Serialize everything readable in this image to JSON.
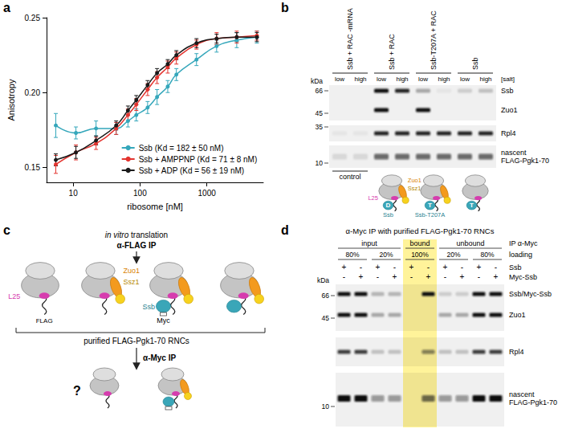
{
  "panel_labels": [
    "a",
    "b",
    "c",
    "d"
  ],
  "chart_data": {
    "type": "line",
    "log": "x",
    "legend": "lower right",
    "grid": false,
    "marker": "circle",
    "x_label": "ribosome [nM]",
    "y_label": "Anisotropy",
    "x": [
      5.5,
      11,
      22,
      44,
      66,
      88,
      130,
      180,
      260,
      350,
      700,
      1400,
      2800,
      5600
    ],
    "xlim": [
      4,
      7000
    ],
    "xticks": [
      10,
      100,
      1000
    ],
    "ylim": [
      0.14,
      0.25
    ],
    "yticks": [
      0.15,
      {
        "value": 0.2,
        "label": "0.20"
      },
      0.25
    ],
    "series": [
      {
        "name": "Ssb (Kd = 182 ± 50 nM)",
        "color": "#35a7bb",
        "values": [
          0.178,
          0.173,
          0.176,
          0.176,
          0.181,
          0.185,
          0.19,
          0.197,
          0.204,
          0.212,
          0.222,
          0.231,
          0.235,
          0.237
        ],
        "errors": [
          0.008,
          0.004,
          0.005,
          0.004,
          0.004,
          0.004,
          0.004,
          0.005,
          0.004,
          0.004,
          0.004,
          0.004,
          0.005,
          0.004
        ]
      },
      {
        "name": "Ssb + AMPPNP (Kd = 71 ± 8 nM)",
        "color": "#e3342f",
        "values": [
          0.152,
          0.16,
          0.166,
          0.176,
          0.185,
          0.192,
          0.202,
          0.21,
          0.217,
          0.223,
          0.232,
          0.236,
          0.237,
          0.238
        ],
        "errors": [
          0.006,
          0.005,
          0.004,
          0.004,
          0.004,
          0.004,
          0.004,
          0.004,
          0.004,
          0.004,
          0.003,
          0.004,
          0.004,
          0.003
        ]
      },
      {
        "name": "Ssb + ADP (Kd = 56 ± 19 nM)",
        "color": "#1a1a1a",
        "values": [
          0.155,
          0.16,
          0.168,
          0.178,
          0.188,
          0.195,
          0.205,
          0.213,
          0.219,
          0.225,
          0.233,
          0.236,
          0.237,
          0.237
        ],
        "errors": [
          0.004,
          0.004,
          0.003,
          0.003,
          0.003,
          0.003,
          0.003,
          0.003,
          0.003,
          0.003,
          0.003,
          0.003,
          0.003,
          0.003
        ]
      }
    ]
  },
  "panel_b": {
    "conditions": [
      "Ssb + RAC -mRNA",
      "Ssb + RAC",
      "Ssb-T207A + RAC",
      "Ssb"
    ],
    "salt": [
      "low",
      "high"
    ],
    "salt_label": "[salt]",
    "kda_label": "kDa",
    "markers": [
      66,
      45,
      35,
      10
    ],
    "rows": [
      {
        "name": "Ssb",
        "bands": [
          0,
          0,
          1,
          0.9,
          0.3,
          0.05,
          0.15,
          0.2
        ]
      },
      {
        "name": "Zuo1",
        "bands": [
          0,
          0,
          1,
          0,
          1,
          0,
          0,
          0
        ]
      },
      {
        "name": "Rpl4",
        "bands": [
          0.05,
          0.05,
          0.9,
          0.9,
          0.9,
          0.9,
          0.9,
          0.9
        ]
      },
      {
        "name": "nascent FLAG-Pgk1-70",
        "bands": [
          0.1,
          0.1,
          0.6,
          0.6,
          0.6,
          0.6,
          0.6,
          0.6
        ]
      }
    ],
    "control_label": "control",
    "cartoons": [
      null,
      {
        "rac": true,
        "ssb": "D",
        "labels": {
          "l25": "L25",
          "zuo1": "Zuo1",
          "ssz1": "Ssz1",
          "ssb": "Ssb"
        }
      },
      {
        "rac": true,
        "ssb": "T",
        "labels": {
          "ssb": "Ssb-T207A"
        }
      },
      {
        "rac": false,
        "ssb": "T"
      }
    ]
  },
  "panel_c": {
    "step1": [
      {
        "text": "in vitro",
        "italic": true
      },
      {
        "text": " translation"
      }
    ],
    "ip1": "α-FLAG IP",
    "top_row": [
      {
        "labels": {
          "l25": "L25",
          "flag": "FLAG"
        }
      },
      {
        "rac": true,
        "labels": {
          "zuo1": "Zuo1",
          "ssz1": "Ssz1"
        }
      },
      {
        "rac": true,
        "ssb": true,
        "myc": true,
        "labels": {
          "ssb": "Ssb",
          "myc": "Myc"
        }
      },
      {
        "rac": true,
        "ssb": true
      }
    ],
    "pool_label": "purified FLAG-Pgk1-70 RNCs",
    "ip2": "α-Myc IP",
    "question": "?",
    "bottom_row": [
      {
        "rac": false
      },
      {
        "rac": true,
        "ssb": true,
        "myc": true
      }
    ]
  },
  "panel_d": {
    "title": "α-Myc IP with purified FLAG-Pgk1-70 RNCs",
    "fractions": [
      {
        "name": "input",
        "loading": [
          "80%",
          "20%"
        ]
      },
      {
        "name": "bound",
        "loading": [
          "100%"
        ],
        "highlight": true
      },
      {
        "name": "unbound",
        "loading": [
          "20%",
          "80%"
        ]
      }
    ],
    "ip_label": "IP α-Myc",
    "loading_label": "loading",
    "conditions": [
      {
        "name": "Ssb",
        "signs": [
          "+",
          "-",
          "+",
          "-",
          "+",
          "-",
          "+",
          "-",
          "+",
          "-"
        ]
      },
      {
        "name": "Myc-Ssb",
        "signs": [
          "-",
          "+",
          "-",
          "+",
          "-",
          "+",
          "-",
          "+",
          "-",
          "+"
        ]
      }
    ],
    "kda_label": "kDa",
    "markers": [
      66,
      45,
      10
    ],
    "rows": [
      {
        "name": "Ssb/Myc-Ssb",
        "bands": [
          1,
          1,
          0.25,
          0.25,
          0,
          1,
          0.15,
          0.15,
          1,
          1
        ]
      },
      {
        "name": "Zuo1",
        "bands": [
          1,
          1,
          0.3,
          0.3,
          0,
          0,
          0.3,
          0.3,
          1,
          1
        ]
      },
      {
        "name": "Rpl4",
        "bands": [
          0.8,
          0.8,
          0.2,
          0.2,
          0,
          0.5,
          0.2,
          0.2,
          0.8,
          0.8
        ]
      },
      {
        "name": "nascent FLAG-Pgk1-70",
        "bands": [
          1,
          1,
          0.4,
          0.4,
          0,
          0.6,
          0.4,
          0.4,
          1,
          1
        ]
      }
    ]
  }
}
